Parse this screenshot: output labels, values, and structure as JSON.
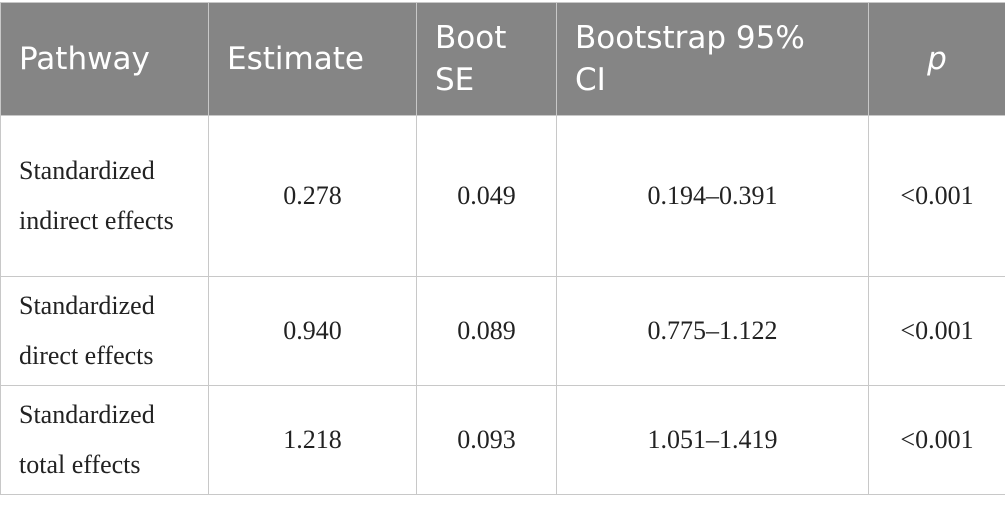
{
  "table": {
    "header": [
      "Pathway",
      "Estimate",
      "Boot SE",
      "Bootstrap 95% CI",
      "p"
    ],
    "rows": [
      [
        "Standardized indirect effects",
        "0.278",
        "0.049",
        "0.194–0.391",
        "<0.001"
      ],
      [
        "Standardized direct effects",
        "0.940",
        "0.089",
        "0.775–1.122",
        "<0.001"
      ],
      [
        "Standardized total effects",
        "1.218",
        "0.093",
        "1.051–1.419",
        "<0.001"
      ]
    ]
  }
}
